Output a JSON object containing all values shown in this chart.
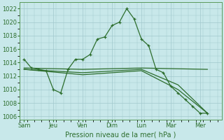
{
  "background_color": "#c8e8ea",
  "grid_color": "#a0c8cc",
  "line_color": "#2d6e2d",
  "xlabel": "Pression niveau de la mer( hPa )",
  "ylim": [
    1005.5,
    1023.0
  ],
  "yticks": [
    1006,
    1008,
    1010,
    1012,
    1014,
    1016,
    1018,
    1020,
    1022
  ],
  "x_labels": [
    "Sam",
    "Jeu",
    "Ven",
    "Dim",
    "Lun",
    "Mar",
    "Mer"
  ],
  "x_positions": [
    0,
    2,
    4,
    6,
    8,
    10,
    12
  ],
  "xlim": [
    -0.3,
    13.5
  ],
  "series1_x": [
    0.0,
    0.5,
    1.0,
    1.5,
    2.0,
    2.5,
    3.0,
    3.5,
    4.0,
    4.5,
    5.0,
    5.5,
    6.0,
    6.5,
    7.0,
    7.5,
    8.0,
    8.5,
    9.0,
    9.5,
    10.0,
    10.5,
    11.0,
    11.5,
    12.0,
    12.5
  ],
  "series1_y": [
    1014.5,
    1013.2,
    1013.0,
    1012.8,
    1010.0,
    1009.5,
    1013.0,
    1014.5,
    1014.5,
    1015.2,
    1017.5,
    1017.8,
    1019.5,
    1020.0,
    1022.0,
    1020.5,
    1017.5,
    1016.5,
    1013.0,
    1012.5,
    1010.5,
    1009.5,
    1008.5,
    1007.5,
    1006.5,
    1006.5
  ],
  "series2_x": [
    0.0,
    4.0,
    8.0,
    12.5
  ],
  "series2_y": [
    1013.2,
    1013.0,
    1013.2,
    1013.0
  ],
  "series3_x": [
    0.0,
    4.0,
    8.0,
    10.5,
    12.5
  ],
  "series3_y": [
    1013.0,
    1012.5,
    1013.0,
    1010.7,
    1006.5
  ],
  "series4_x": [
    0.0,
    4.0,
    8.0,
    10.5,
    12.5
  ],
  "series4_y": [
    1013.0,
    1012.2,
    1012.8,
    1010.0,
    1006.5
  ],
  "ytick_fontsize": 6,
  "xtick_fontsize": 6,
  "xlabel_fontsize": 7
}
